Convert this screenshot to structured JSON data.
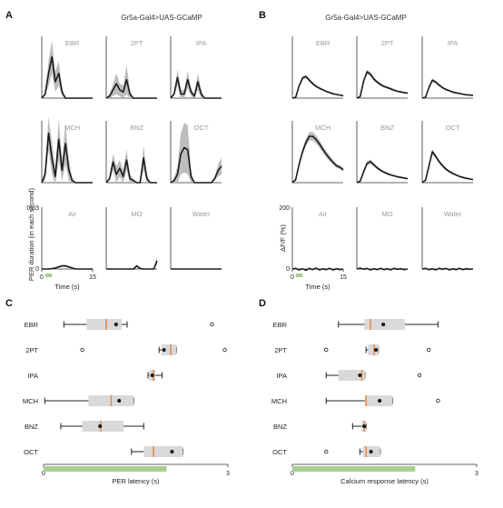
{
  "colors": {
    "trace": "#1a1a1a",
    "band": "#bdbdbd",
    "box": "#d9d9d9",
    "median": "#e8823a",
    "axis": "#333333",
    "stim": "#a8d08d",
    "label_gray": "#9a9a9a"
  },
  "panels": {
    "A": {
      "letter": "A",
      "title": "Gr5a-Gal4>UAS-GCaMP"
    },
    "B": {
      "letter": "B",
      "title": "Gr5a-Gal4>UAS-GCaMP"
    },
    "C": {
      "letter": "C"
    },
    "D": {
      "letter": "D"
    }
  },
  "chart_data": [
    {
      "id": "A",
      "type": "line",
      "title": "Gr5a-Gal4>UAS-GCaMP",
      "xlabel": "Time (s)",
      "ylabel": "PER duration (in each second)",
      "xlim": [
        0,
        15
      ],
      "ylim": [
        0,
        0.03
      ],
      "x_ticks": [
        "0",
        "15"
      ],
      "y_ticks": [
        "0",
        "0.03"
      ],
      "stimulus_s": [
        1,
        3
      ],
      "x": [
        0,
        1,
        2,
        3,
        4,
        5,
        6,
        7,
        8,
        9,
        10,
        11,
        12,
        13,
        14,
        15
      ],
      "series": [
        {
          "name": "EBR",
          "values": [
            0.0,
            0.002,
            0.012,
            0.02,
            0.008,
            0.012,
            0.003,
            0.0,
            0.0,
            0.0,
            0.0,
            0.0,
            0.0,
            0.0,
            0.0,
            0.0
          ],
          "sem": [
            0,
            0.001,
            0.006,
            0.008,
            0.005,
            0.006,
            0.002,
            0,
            0,
            0,
            0,
            0,
            0,
            0,
            0,
            0
          ]
        },
        {
          "name": "2PT",
          "values": [
            0.0,
            0.001,
            0.004,
            0.007,
            0.004,
            0.003,
            0.009,
            0.002,
            0.0,
            0.0,
            0.0,
            0.0,
            0.0,
            0.0,
            0.0,
            0.0
          ],
          "sem": [
            0,
            0.001,
            0.003,
            0.005,
            0.003,
            0.003,
            0.007,
            0.002,
            0,
            0,
            0,
            0,
            0,
            0,
            0,
            0
          ]
        },
        {
          "name": "IPA",
          "values": [
            0.0,
            0.002,
            0.01,
            0.002,
            0.002,
            0.009,
            0.003,
            0.001,
            0.008,
            0.002,
            0.0,
            0.0,
            0.0,
            0.0,
            0.0,
            0.0
          ],
          "sem": [
            0,
            0.001,
            0.004,
            0.002,
            0.002,
            0.004,
            0.002,
            0.001,
            0.004,
            0.002,
            0,
            0,
            0,
            0,
            0,
            0
          ]
        },
        {
          "name": "MCH",
          "values": [
            0.0,
            0.004,
            0.024,
            0.012,
            0.003,
            0.021,
            0.006,
            0.019,
            0.006,
            0.001,
            0.0,
            0.0,
            0.0,
            0.0,
            0.0,
            0.0
          ],
          "sem": [
            0,
            0.003,
            0.008,
            0.008,
            0.004,
            0.01,
            0.005,
            0.01,
            0.005,
            0.001,
            0,
            0,
            0,
            0,
            0,
            0
          ]
        },
        {
          "name": "BNZ",
          "values": [
            0.0,
            0.002,
            0.01,
            0.004,
            0.007,
            0.003,
            0.011,
            0.002,
            0.001,
            0.0,
            0.0,
            0.012,
            0.002,
            0.0,
            0.0,
            0.0
          ],
          "sem": [
            0,
            0.001,
            0.004,
            0.004,
            0.004,
            0.003,
            0.005,
            0.002,
            0.001,
            0,
            0,
            0.006,
            0.002,
            0,
            0,
            0
          ]
        },
        {
          "name": "OCT",
          "values": [
            0.0,
            0.001,
            0.004,
            0.014,
            0.017,
            0.016,
            0.003,
            0.0,
            0.0,
            0.0,
            0.0,
            0.0,
            0.0,
            0.002,
            0.006,
            0.008
          ],
          "sem": [
            0,
            0.001,
            0.004,
            0.01,
            0.012,
            0.012,
            0.003,
            0,
            0,
            0,
            0,
            0,
            0,
            0.001,
            0.003,
            0.004
          ]
        },
        {
          "name": "Air",
          "values": [
            0.0,
            0.0,
            0.0,
            0.0002,
            0.0005,
            0.001,
            0.0015,
            0.0015,
            0.001,
            0.0005,
            0.0,
            0.0,
            0.0,
            0.0,
            0.0,
            0.0
          ],
          "sem": [
            0,
            0,
            0,
            0,
            0.0003,
            0.0004,
            0.0005,
            0.0005,
            0.0004,
            0.0003,
            0,
            0,
            0,
            0,
            0,
            0
          ]
        },
        {
          "name": "MO",
          "values": [
            0.0,
            0.0,
            0.0,
            0.0,
            0.0,
            0.0,
            0.0,
            0.0,
            0.0,
            0.0015,
            0.0003,
            0.0,
            0.0,
            0.0,
            0.0,
            0.004
          ],
          "sem": [
            0,
            0,
            0,
            0,
            0,
            0,
            0,
            0,
            0,
            0.0006,
            0.0002,
            0,
            0,
            0,
            0,
            0.002
          ]
        },
        {
          "name": "Water",
          "values": [
            0,
            0,
            0,
            0,
            0,
            0,
            0,
            0,
            0,
            0,
            0,
            0,
            0,
            0,
            0,
            0
          ],
          "sem": [
            0,
            0,
            0,
            0,
            0,
            0,
            0,
            0,
            0,
            0,
            0,
            0,
            0,
            0,
            0,
            0
          ]
        }
      ]
    },
    {
      "id": "B",
      "type": "line",
      "title": "Gr5a-Gal4>UAS-GCaMP",
      "xlabel": "Time (s)",
      "ylabel": "ΔF/F (%)",
      "xlim": [
        0,
        15
      ],
      "ylim": [
        0,
        200
      ],
      "x_ticks": [
        "0",
        "15"
      ],
      "y_ticks": [
        "0",
        "200"
      ],
      "stimulus_s": [
        1,
        3
      ],
      "x": [
        0,
        1,
        2,
        3,
        4,
        5,
        6,
        7,
        8,
        9,
        10,
        11,
        12,
        13,
        14,
        15
      ],
      "series": [
        {
          "name": "EBR",
          "values": [
            0,
            3,
            40,
            65,
            70,
            58,
            47,
            38,
            32,
            27,
            22,
            18,
            14,
            12,
            10,
            8
          ],
          "sem": [
            0,
            2,
            5,
            6,
            6,
            5,
            5,
            4,
            4,
            3,
            3,
            3,
            3,
            2,
            2,
            2
          ]
        },
        {
          "name": "2PT",
          "values": [
            0,
            5,
            55,
            85,
            78,
            62,
            52,
            44,
            38,
            34,
            30,
            26,
            22,
            20,
            18,
            16
          ],
          "sem": [
            0,
            2,
            6,
            7,
            7,
            6,
            5,
            5,
            4,
            4,
            4,
            3,
            3,
            3,
            3,
            3
          ]
        },
        {
          "name": "IPA",
          "values": [
            0,
            3,
            35,
            58,
            52,
            42,
            34,
            28,
            24,
            20,
            17,
            15,
            13,
            11,
            10,
            9
          ],
          "sem": [
            0,
            2,
            5,
            6,
            5,
            5,
            4,
            4,
            3,
            3,
            3,
            3,
            2,
            2,
            2,
            2
          ]
        },
        {
          "name": "MCH",
          "values": [
            0,
            10,
            60,
            100,
            130,
            150,
            150,
            140,
            125,
            108,
            92,
            78,
            66,
            55,
            50,
            42
          ],
          "sem": [
            0,
            4,
            8,
            10,
            12,
            14,
            14,
            13,
            12,
            11,
            10,
            9,
            8,
            7,
            6,
            6
          ]
        },
        {
          "name": "BNZ",
          "values": [
            0,
            5,
            35,
            62,
            68,
            58,
            48,
            40,
            34,
            29,
            25,
            22,
            19,
            17,
            15,
            13
          ],
          "sem": [
            0,
            2,
            6,
            7,
            7,
            6,
            5,
            5,
            4,
            4,
            3,
            3,
            3,
            3,
            3,
            3
          ]
        },
        {
          "name": "OCT",
          "values": [
            0,
            8,
            55,
            100,
            85,
            68,
            55,
            44,
            36,
            30,
            25,
            20,
            17,
            14,
            12,
            10
          ],
          "sem": [
            0,
            3,
            6,
            8,
            7,
            6,
            5,
            5,
            4,
            4,
            3,
            3,
            3,
            3,
            2,
            2
          ]
        },
        {
          "name": "Air",
          "values": [
            0,
            2,
            -3,
            1,
            -4,
            2,
            -2,
            3,
            -3,
            1,
            -2,
            2,
            -3,
            1,
            -2,
            0
          ],
          "sem": [
            0,
            1,
            1,
            1,
            1,
            1,
            1,
            1,
            1,
            1,
            1,
            1,
            1,
            1,
            1,
            1
          ]
        },
        {
          "name": "MO",
          "values": [
            0,
            3,
            -1,
            2,
            -3,
            1,
            -2,
            2,
            -2,
            1,
            -3,
            2,
            -1,
            1,
            -2,
            0
          ],
          "sem": [
            0,
            1,
            1,
            1,
            1,
            1,
            1,
            1,
            1,
            1,
            1,
            1,
            1,
            1,
            1,
            1
          ]
        },
        {
          "name": "Water",
          "values": [
            0,
            2,
            -2,
            1,
            -3,
            2,
            -1,
            2,
            -3,
            1,
            -2,
            2,
            -2,
            1,
            -1,
            0
          ],
          "sem": [
            0,
            1,
            1,
            1,
            1,
            1,
            1,
            1,
            1,
            1,
            1,
            1,
            1,
            1,
            1,
            1
          ]
        }
      ]
    },
    {
      "id": "C",
      "type": "box",
      "xlabel": "PER latency (s)",
      "xlim": [
        0,
        3
      ],
      "x_ticks": [
        "0",
        "3"
      ],
      "stimulus_s": [
        0,
        2
      ],
      "categories": [
        "EBR",
        "2PT",
        "IPA",
        "MCH",
        "BNZ",
        "OCT"
      ],
      "boxes": [
        {
          "whisker_low": 0.33,
          "q1": 0.7,
          "median": 1.02,
          "q3": 1.27,
          "whisker_high": 1.36,
          "mean": 1.18,
          "outliers": [
            2.74
          ]
        },
        {
          "whisker_low": 1.88,
          "q1": 1.92,
          "median": 2.07,
          "q3": 2.16,
          "whisker_high": 2.16,
          "mean": 1.96,
          "outliers": [
            0.63,
            2.95
          ]
        },
        {
          "whisker_low": 1.7,
          "q1": 1.72,
          "median": 1.79,
          "q3": 1.82,
          "whisker_high": 1.93,
          "mean": 1.77,
          "outliers": []
        },
        {
          "whisker_low": 0.02,
          "q1": 0.73,
          "median": 1.1,
          "q3": 1.47,
          "whisker_high": 1.47,
          "mean": 1.23,
          "outliers": []
        },
        {
          "whisker_low": 0.28,
          "q1": 0.63,
          "median": 0.93,
          "q3": 1.3,
          "whisker_high": 1.63,
          "mean": 0.92,
          "outliers": []
        },
        {
          "whisker_low": 1.43,
          "q1": 1.63,
          "median": 1.79,
          "q3": 2.27,
          "whisker_high": 2.27,
          "mean": 2.09,
          "outliers": []
        }
      ]
    },
    {
      "id": "D",
      "type": "box",
      "xlabel": "Calcium response latency (s)",
      "xlim": [
        0,
        3
      ],
      "x_ticks": [
        "0",
        "3"
      ],
      "stimulus_s": [
        0,
        2
      ],
      "categories": [
        "EBR",
        "2PT",
        "IPA",
        "MCH",
        "BNZ",
        "OCT"
      ],
      "boxes": [
        {
          "whisker_low": 0.75,
          "q1": 1.17,
          "median": 1.27,
          "q3": 1.83,
          "whisker_high": 2.37,
          "mean": 1.48,
          "outliers": []
        },
        {
          "whisker_low": 1.2,
          "q1": 1.23,
          "median": 1.33,
          "q3": 1.4,
          "whisker_high": 1.4,
          "mean": 1.36,
          "outliers": [
            0.55,
            2.22
          ]
        },
        {
          "whisker_low": 0.55,
          "q1": 0.75,
          "median": 1.13,
          "q3": 1.18,
          "whisker_high": 1.18,
          "mean": 1.1,
          "outliers": [
            2.07
          ]
        },
        {
          "whisker_low": 0.55,
          "q1": 1.18,
          "median": 1.2,
          "q3": 1.63,
          "whisker_high": 1.63,
          "mean": 1.42,
          "outliers": [
            2.37
          ]
        },
        {
          "whisker_low": 0.98,
          "q1": 1.13,
          "median": 1.17,
          "q3": 1.2,
          "whisker_high": 1.2,
          "mean": 1.17,
          "outliers": []
        },
        {
          "whisker_low": 1.1,
          "q1": 1.15,
          "median": 1.2,
          "q3": 1.43,
          "whisker_high": 1.43,
          "mean": 1.28,
          "outliers": [
            0.55
          ]
        }
      ]
    }
  ]
}
